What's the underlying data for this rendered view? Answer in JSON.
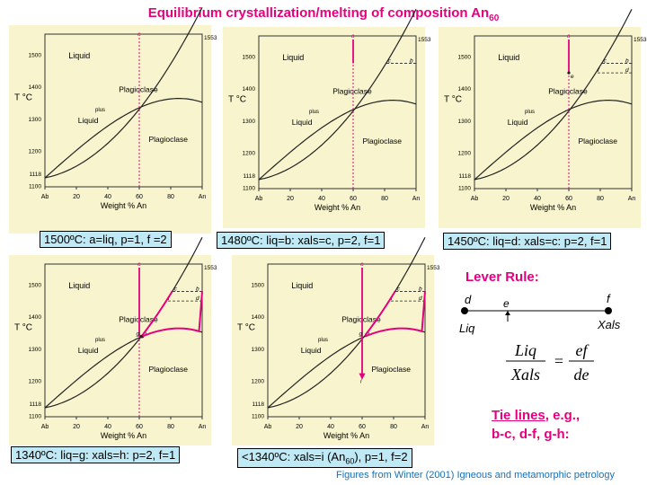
{
  "title": {
    "text": "Equilibrium crystallization/melting of composition An",
    "sub": "60"
  },
  "diagram": {
    "axis_title": "Weight % An",
    "y_label": "T °C",
    "x_ticks": [
      "Ab",
      "20",
      "40",
      "60",
      "80",
      "An"
    ],
    "y_ticks": [
      "1500",
      "1400",
      "1300",
      "1200",
      "1118",
      "1100"
    ],
    "top_label": "1553",
    "region_liquid": "Liquid",
    "region_plag": "Plagioclase",
    "region_plus": "plus",
    "region_liquid2": "Liquid",
    "region_plagioclase": "Plagioclase",
    "point_a": "a",
    "point_b": "b",
    "point_c": "c",
    "point_d": "d",
    "point_e": "e",
    "point_f": "f",
    "point_g": "g",
    "point_h": "h",
    "point_i": "i",
    "colors": {
      "background": "#f7f4ce",
      "pink": "#e6007e"
    }
  },
  "captions": {
    "p1": "1500ºC: a=liq, p=1, f =2",
    "p2": "1480ºC: liq=b: xals=c, p=2, f=1",
    "p3": "1450ºC: liq=d: xals=c: p=2, f=1",
    "p4": "1340ºC: liq=g: xals=h: p=2, f=1",
    "p5_pre": "<1340ºC: xals=i (An",
    "p5_sub": "60",
    "p5_post": "), p=1, f=2"
  },
  "lever": {
    "title": "Lever Rule:",
    "d": "d",
    "e": "e",
    "f": "f",
    "liq": "Liq",
    "xals": "Xals",
    "frac_left_num": "Liq",
    "frac_left_den": "Xals",
    "frac_right_num": "ef",
    "frac_right_den": "de",
    "equals": "="
  },
  "tie": {
    "label": "Tie lines",
    "rest1": ", e.g.,",
    "rest2": "b-c, d-f, g-h:"
  },
  "credit": "Figures from Winter (2001) Igneous and metamorphic petrology"
}
